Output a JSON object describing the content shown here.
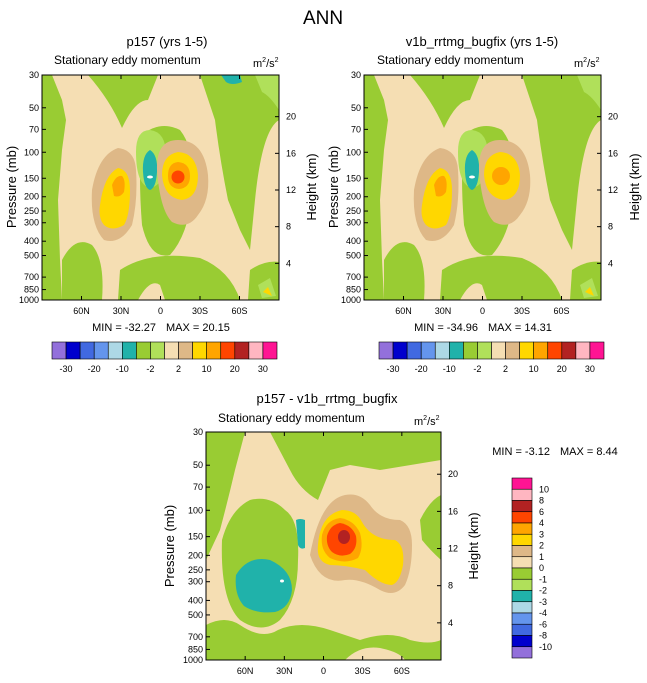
{
  "figure": {
    "title": "ANN",
    "variable": "Stationary eddy momentum",
    "units_base": "m",
    "units_exp": "2",
    "units_denom_base": "/s",
    "units_denom_exp": "2"
  },
  "chart_data": [
    {
      "type": "heatmap",
      "id": "p157",
      "title": "p157 (yrs 1-5)",
      "subtitle": "Stationary eddy momentum",
      "ylabel": "Pressure (mb)",
      "y2label": "Height (km)",
      "x_ticks": [
        "60N",
        "30N",
        "0",
        "30S",
        "60S"
      ],
      "x_tick_lat": [
        60,
        30,
        0,
        -30,
        -60
      ],
      "xlim": [
        90,
        -90
      ],
      "y_ticks": [
        30,
        50,
        70,
        100,
        150,
        200,
        250,
        300,
        400,
        500,
        700,
        850,
        1000
      ],
      "y_tick_labels": [
        "30",
        "50",
        "70",
        "100",
        "150",
        "200",
        "250",
        "300",
        "400",
        "500",
        "700",
        "850",
        "1000"
      ],
      "ylim": [
        1000,
        30
      ],
      "height_ticks": [
        4,
        8,
        12,
        16,
        20
      ],
      "min_label": "MIN = -32.27",
      "max_label": "MAX =  20.15",
      "min": -32.27,
      "max": 20.15,
      "colorbar_labels": [
        "-30",
        "-20",
        "-10",
        "-2",
        "2",
        "10",
        "20",
        "30"
      ]
    },
    {
      "type": "heatmap",
      "id": "v1b",
      "title": "v1b_rrtmg_bugfix (yrs 1-5)",
      "subtitle": "Stationary eddy momentum",
      "ylabel": "Pressure (mb)",
      "y2label": "Height (km)",
      "x_ticks": [
        "60N",
        "30N",
        "0",
        "30S",
        "60S"
      ],
      "x_tick_lat": [
        60,
        30,
        0,
        -30,
        -60
      ],
      "xlim": [
        90,
        -90
      ],
      "y_ticks": [
        30,
        50,
        70,
        100,
        150,
        200,
        250,
        300,
        400,
        500,
        700,
        850,
        1000
      ],
      "y_tick_labels": [
        "30",
        "50",
        "70",
        "100",
        "150",
        "200",
        "250",
        "300",
        "400",
        "500",
        "700",
        "850",
        "1000"
      ],
      "ylim": [
        1000,
        30
      ],
      "height_ticks": [
        4,
        8,
        12,
        16,
        20
      ],
      "min_label": "MIN = -34.96",
      "max_label": "MAX =  14.31",
      "min": -34.96,
      "max": 14.31,
      "colorbar_labels": [
        "-30",
        "-20",
        "-10",
        "-2",
        "2",
        "10",
        "20",
        "30"
      ]
    },
    {
      "type": "heatmap",
      "id": "diff",
      "title": "p157 - v1b_rrtmg_bugfix",
      "subtitle": "Stationary eddy momentum",
      "ylabel": "Pressure (mb)",
      "y2label": "Height (km)",
      "x_ticks": [
        "60N",
        "30N",
        "0",
        "30S",
        "60S"
      ],
      "x_tick_lat": [
        60,
        30,
        0,
        -30,
        -60
      ],
      "xlim": [
        90,
        -90
      ],
      "y_ticks": [
        30,
        50,
        70,
        100,
        150,
        200,
        250,
        300,
        400,
        500,
        700,
        850,
        1000
      ],
      "y_tick_labels": [
        "30",
        "50",
        "70",
        "100",
        "150",
        "200",
        "250",
        "300",
        "400",
        "500",
        "700",
        "850",
        "1000"
      ],
      "ylim": [
        1000,
        30
      ],
      "height_ticks": [
        4,
        8,
        12,
        16,
        20
      ],
      "min_label": "MIN =  -3.12",
      "max_label": "MAX =   8.44",
      "min": -3.12,
      "max": 8.44,
      "colorbar_labels": [
        "10",
        "8",
        "6",
        "4",
        "3",
        "2",
        "1",
        "0",
        "-1",
        "-2",
        "-3",
        "-4",
        "-6",
        "-8",
        "-10"
      ]
    }
  ],
  "colorbars": {
    "top_colors": [
      "#9370db",
      "#0000cd",
      "#4169e1",
      "#6495ed",
      "#add8e6",
      "#20b2aa",
      "#99cc33",
      "#b0e05a",
      "#f5deb3",
      "#deb887",
      "#ffd700",
      "#ffa500",
      "#ff4500",
      "#b22222",
      "#ffb6c1",
      "#ff1493"
    ],
    "diff_colors": [
      "#ff1493",
      "#ffb6c1",
      "#b22222",
      "#ff4500",
      "#ffa500",
      "#ffd700",
      "#deb887",
      "#f5deb3",
      "#99cc33",
      "#b0e05a",
      "#20b2aa",
      "#add8e6",
      "#6495ed",
      "#4169e1",
      "#0000cd",
      "#9370db"
    ]
  },
  "palette": {
    "bg": "#f5deb3",
    "green": "#99cc33",
    "lightgreen": "#b0e05a",
    "tan": "#deb887",
    "yellow": "#ffd700",
    "orange": "#ffa500",
    "red": "#ff4500",
    "darkred": "#b22222",
    "teal": "#20b2aa",
    "lightblue": "#add8e6"
  }
}
